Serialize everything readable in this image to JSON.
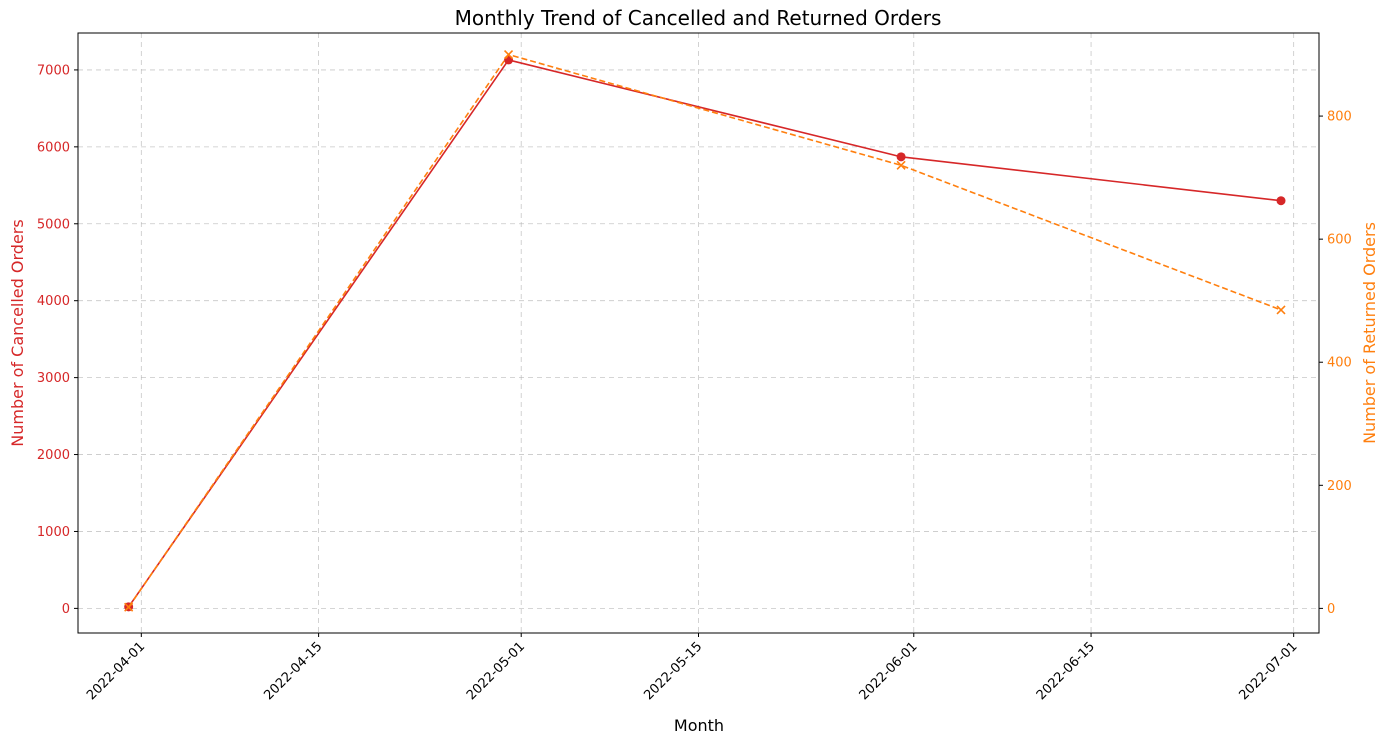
{
  "chart_data": {
    "type": "line",
    "title": "Monthly Trend of Cancelled and Returned Orders",
    "xlabel": "Month",
    "ylabel_left": "Number of Cancelled Orders",
    "ylabel_right": "Number of Returned Orders",
    "x": [
      "2022-03-31",
      "2022-04-30",
      "2022-05-31",
      "2022-06-30"
    ],
    "x_ticks": [
      "2022-04-01",
      "2022-04-15",
      "2022-05-01",
      "2022-05-15",
      "2022-06-01",
      "2022-06-15",
      "2022-07-01"
    ],
    "xlim": [
      "2022-03-27",
      "2022-07-03"
    ],
    "ylim_left": [
      -320,
      7480
    ],
    "yticks_left": [
      0,
      1000,
      2000,
      3000,
      4000,
      5000,
      6000,
      7000
    ],
    "ylim_right": [
      -40,
      935
    ],
    "yticks_right": [
      0,
      200,
      400,
      600,
      800
    ],
    "grid": true,
    "series": [
      {
        "name": "Cancelled",
        "axis": "left",
        "values": [
          20,
          7130,
          5870,
          5300
        ],
        "color": "#d62728",
        "marker": "circle",
        "line_style": "solid"
      },
      {
        "name": "Returned",
        "axis": "right",
        "values": [
          2,
          900,
          720,
          485
        ],
        "color": "#ff7f0e",
        "marker": "x",
        "line_style": "dashed"
      }
    ]
  }
}
